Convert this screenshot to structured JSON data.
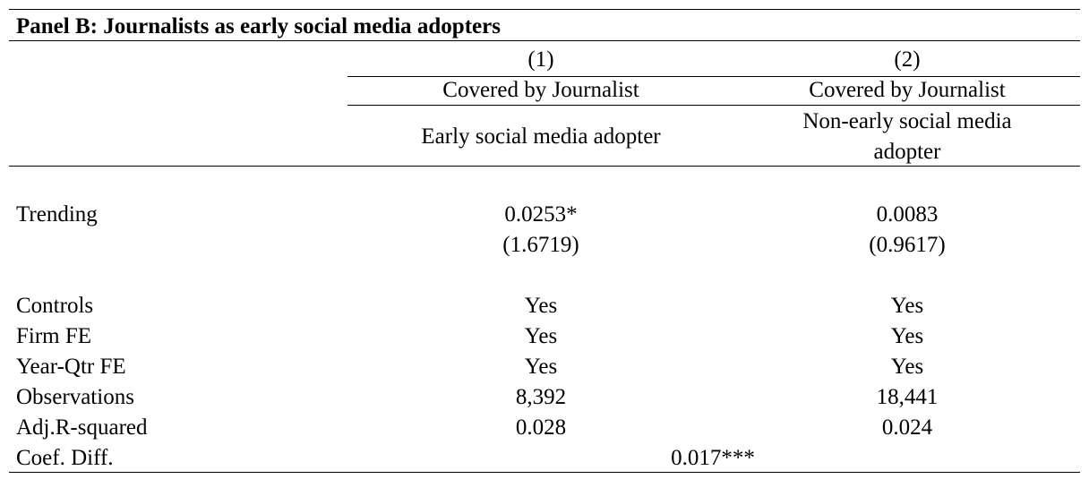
{
  "panel_title": "Panel B: Journalists as early social media adopters",
  "columns": [
    {
      "number": "(1)",
      "header": "Covered by Journalist",
      "subheader": "Early social media adopter"
    },
    {
      "number": "(2)",
      "header": "Covered by Journalist",
      "subheader_line1": "Non-early social media",
      "subheader_line2": "adopter"
    }
  ],
  "trending": {
    "label": "Trending",
    "coef": [
      "0.0253*",
      "0.0083"
    ],
    "tstat": [
      "(1.6719)",
      "(0.9617)"
    ]
  },
  "rows": [
    {
      "label": "Controls",
      "values": [
        "Yes",
        "Yes"
      ]
    },
    {
      "label": "Firm FE",
      "values": [
        "Yes",
        "Yes"
      ]
    },
    {
      "label": "Year-Qtr FE",
      "values": [
        "Yes",
        "Yes"
      ]
    },
    {
      "label": "Observations",
      "values": [
        "8,392",
        "18,441"
      ]
    },
    {
      "label": "Adj.R-squared",
      "values": [
        "0.028",
        "0.024"
      ]
    }
  ],
  "coef_diff": {
    "label": "Coef. Diff.",
    "value": "0.017***"
  }
}
